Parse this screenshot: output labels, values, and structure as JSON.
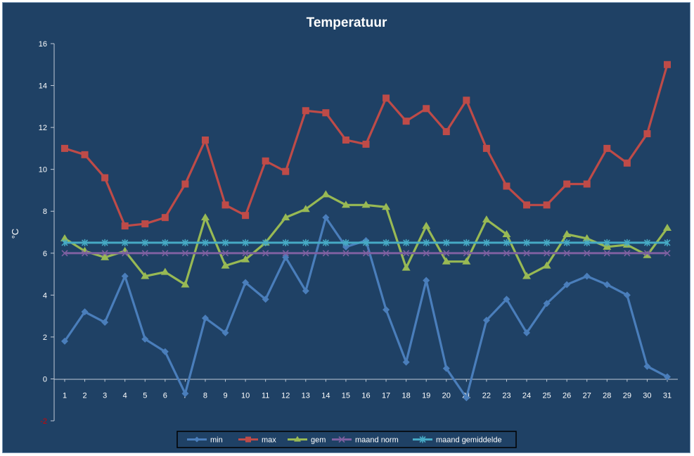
{
  "chart_data": {
    "type": "line",
    "title": "Temperatuur",
    "xlabel": "",
    "ylabel": "°C",
    "ylim": [
      -2,
      16
    ],
    "yticks": [
      -2,
      0,
      2,
      4,
      6,
      8,
      10,
      12,
      14,
      16
    ],
    "grid": false,
    "legend_position": "bottom",
    "x": [
      1,
      2,
      3,
      4,
      5,
      6,
      7,
      8,
      9,
      10,
      11,
      12,
      13,
      14,
      15,
      16,
      17,
      18,
      19,
      20,
      21,
      22,
      23,
      24,
      25,
      26,
      27,
      28,
      29,
      30,
      31
    ],
    "series": [
      {
        "name": "min",
        "color": "#4a7ebb",
        "marker": "diamond",
        "values": [
          1.8,
          3.2,
          2.7,
          4.9,
          1.9,
          1.3,
          -0.7,
          2.9,
          2.2,
          4.6,
          3.8,
          5.8,
          4.2,
          7.7,
          6.3,
          6.6,
          3.3,
          0.8,
          4.7,
          0.5,
          -0.9,
          2.8,
          3.8,
          2.2,
          3.6,
          4.5,
          4.9,
          4.5,
          4.0,
          0.6,
          0.1
        ]
      },
      {
        "name": "max",
        "color": "#be4b48",
        "marker": "square",
        "values": [
          11.0,
          10.7,
          9.6,
          7.3,
          7.4,
          7.7,
          9.3,
          11.4,
          8.3,
          7.8,
          10.4,
          9.9,
          12.8,
          12.7,
          11.4,
          11.2,
          13.4,
          12.3,
          12.9,
          11.8,
          13.3,
          11.0,
          9.2,
          8.3,
          8.3,
          9.3,
          9.3,
          11.0,
          10.3,
          11.7,
          15.0
        ]
      },
      {
        "name": "gem",
        "color": "#98b954",
        "marker": "triangle",
        "values": [
          6.7,
          6.1,
          5.8,
          6.1,
          4.9,
          5.1,
          4.5,
          7.7,
          5.4,
          5.7,
          6.5,
          7.7,
          8.1,
          8.8,
          8.3,
          8.3,
          8.2,
          5.3,
          7.3,
          5.6,
          5.6,
          7.6,
          6.9,
          4.9,
          5.4,
          6.9,
          6.7,
          6.3,
          6.4,
          5.9,
          7.2
        ]
      },
      {
        "name": "maand norm",
        "color": "#7d60a0",
        "marker": "x",
        "values": [
          6,
          6,
          6,
          6,
          6,
          6,
          6,
          6,
          6,
          6,
          6,
          6,
          6,
          6,
          6,
          6,
          6,
          6,
          6,
          6,
          6,
          6,
          6,
          6,
          6,
          6,
          6,
          6,
          6,
          6,
          6
        ]
      },
      {
        "name": "maand gemiddelde",
        "color": "#46aac5",
        "marker": "star",
        "values": [
          6.5,
          6.5,
          6.5,
          6.5,
          6.5,
          6.5,
          6.5,
          6.5,
          6.5,
          6.5,
          6.5,
          6.5,
          6.5,
          6.5,
          6.5,
          6.5,
          6.5,
          6.5,
          6.5,
          6.5,
          6.5,
          6.5,
          6.5,
          6.5,
          6.5,
          6.5,
          6.5,
          6.5,
          6.5,
          6.5,
          6.5
        ]
      }
    ]
  }
}
